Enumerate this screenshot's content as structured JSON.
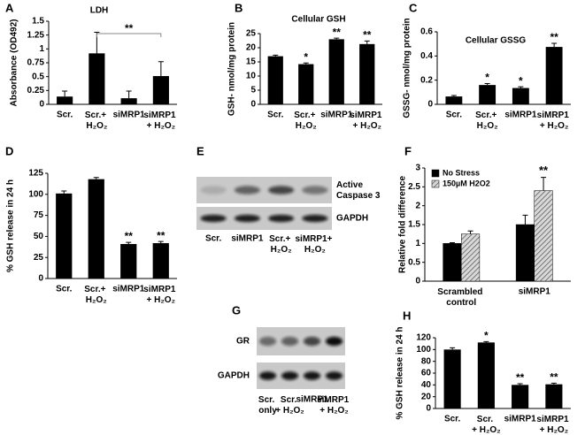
{
  "chart_data": [
    {
      "panel": "A",
      "type": "bar",
      "title": "LDH",
      "y_label": "Absorbance (OD492)",
      "categories": [
        "Scr.",
        "Scr.+ H₂O₂",
        "siMRP1",
        "siMRP1 + H₂O₂"
      ],
      "values": [
        0.14,
        0.92,
        0.11,
        0.51
      ],
      "errors": [
        0.1,
        0.38,
        0.13,
        0.26
      ],
      "color": "#000000",
      "ylim": [
        0,
        1.5
      ],
      "yticks": [
        0,
        0.25,
        0.5,
        0.75,
        1,
        1.25,
        1.5
      ],
      "bracket_label": "**"
    },
    {
      "panel": "B",
      "type": "bar",
      "title": "Cellular GSH",
      "y_label": "GSH- nmol/mg protein",
      "categories": [
        "Scr.",
        "Scr.+ H₂O₂",
        "siMRP1",
        "siMRP1 + H₂O₂"
      ],
      "values": [
        17,
        14.2,
        23,
        21.3
      ],
      "errors": [
        0.4,
        0.4,
        0.4,
        1.1
      ],
      "markers": [
        null,
        "*",
        "**",
        "**"
      ],
      "color": "#000000",
      "ylim": [
        0,
        25
      ],
      "yticks": [
        0,
        5,
        10,
        15,
        20,
        25
      ]
    },
    {
      "panel": "C",
      "type": "bar",
      "title": "Cellular GSSG",
      "y_label": "GSSG- nmol/mg protein",
      "categories": [
        "Scr.",
        "Scr.+ H₂O₂",
        "siMRP1",
        "siMRP1 + H₂O₂"
      ],
      "values": [
        0.065,
        0.16,
        0.135,
        0.475
      ],
      "errors": [
        0.008,
        0.012,
        0.01,
        0.03
      ],
      "markers": [
        null,
        "*",
        "*",
        "**"
      ],
      "color": "#000000",
      "ylim": [
        0,
        0.6
      ],
      "yticks": [
        0,
        0.2,
        0.4,
        0.6
      ]
    },
    {
      "panel": "D",
      "type": "bar",
      "y_label": "% GSH release in 24 h",
      "categories": [
        "Scr.",
        "Scr.+ H₂O₂",
        "siMRP1",
        "siMRP1 + H₂O₂"
      ],
      "values": [
        101,
        118,
        41,
        42
      ],
      "errors": [
        3,
        2,
        2,
        2
      ],
      "markers": [
        null,
        null,
        "**",
        "**"
      ],
      "color": "#000000",
      "ylim": [
        0,
        125
      ],
      "yticks": [
        0,
        25,
        50,
        75,
        100,
        125
      ]
    },
    {
      "panel": "F",
      "type": "grouped_bar",
      "y_label": "Relative fold difference",
      "categories": [
        "Scrambled control",
        "siMRP1"
      ],
      "series": [
        {
          "name": "No Stress",
          "color": "#000000",
          "values": [
            1.0,
            1.5
          ],
          "errors": [
            0.02,
            0.25
          ]
        },
        {
          "name": "150µM H2O2",
          "color": "#9a9a9a",
          "pattern": "hatch",
          "values": [
            1.25,
            2.4
          ],
          "errors": [
            0.08,
            0.35
          ],
          "markers": [
            null,
            "**"
          ]
        }
      ],
      "legend": "upper left",
      "ylim": [
        0,
        3
      ],
      "yticks": [
        0,
        0.5,
        1,
        1.5,
        2,
        2.5,
        3
      ]
    },
    {
      "panel": "H",
      "type": "bar",
      "y_label": "% GSH release in 24 h",
      "categories": [
        "Scr.",
        "Scr. + H₂O₂",
        "siMRP1",
        "siMRP1 + H₂O₂"
      ],
      "values": [
        100,
        112,
        40,
        41
      ],
      "errors": [
        3,
        1.5,
        2,
        2
      ],
      "markers": [
        null,
        "*",
        "**",
        "**"
      ],
      "color": "#000000",
      "ylim": [
        0,
        120
      ],
      "yticks": [
        0,
        20,
        40,
        60,
        80,
        100,
        120
      ]
    }
  ],
  "blots": [
    {
      "panel": "E",
      "rows": [
        "Active Caspase 3",
        "GAPDH"
      ],
      "lanes": [
        "Scr.",
        "siMRP1",
        "Scr.+ H₂O₂",
        "siMRP1+ H₂O₂"
      ]
    },
    {
      "panel": "G",
      "rows": [
        "GR",
        "GAPDH"
      ],
      "lanes": [
        "Scr. only",
        "Scr. + H₂O₂",
        "siMRP1",
        "siMRP1 + H₂O₂"
      ]
    }
  ]
}
